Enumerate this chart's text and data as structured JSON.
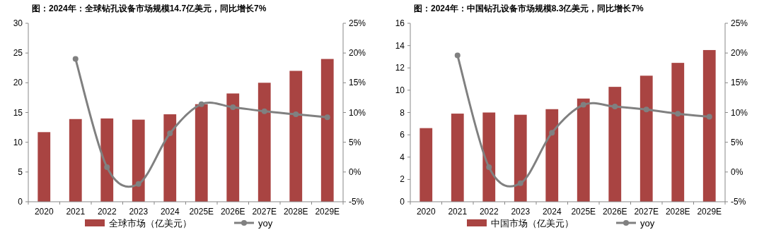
{
  "chart_data": [
    {
      "type": "bar",
      "title": "图：2024年：全球钻孔设备市场规模14.7亿美元，同比增长7%",
      "categories": [
        "2020",
        "2021",
        "2022",
        "2023",
        "2024",
        "2025E",
        "2026E",
        "2027E",
        "2028E",
        "2029E"
      ],
      "series": [
        {
          "name": "全球市场（亿美元）",
          "color": "#a94442",
          "values": [
            11.7,
            13.9,
            14.0,
            13.8,
            14.7,
            16.4,
            18.2,
            20.0,
            22.0,
            24.0
          ]
        },
        {
          "name": "yoy",
          "type": "line",
          "axis": "y2",
          "color": "#808080",
          "marker": "circle",
          "line_style": "solid",
          "values": [
            null,
            19.0,
            0.8,
            -2.0,
            6.5,
            11.4,
            10.9,
            10.2,
            9.7,
            9.2
          ]
        }
      ],
      "ylim": [
        0,
        30
      ],
      "yticks": [
        0,
        5,
        10,
        15,
        20,
        25,
        30
      ],
      "y2lim": [
        -5,
        25
      ],
      "y2ticks": [
        {
          "value": -5,
          "label": "-5%"
        },
        {
          "value": 0,
          "label": "0%"
        },
        {
          "value": 5,
          "label": "5%"
        },
        {
          "value": 10,
          "label": "10%"
        },
        {
          "value": 15,
          "label": "15%"
        },
        {
          "value": 20,
          "label": "20%"
        },
        {
          "value": 25,
          "label": "25%"
        }
      ],
      "legend": "bottom"
    },
    {
      "type": "bar",
      "title": "图：2024年：中国钻孔设备市场规模8.3亿美元，同比增长7%",
      "categories": [
        "2020",
        "2021",
        "2022",
        "2023",
        "2024",
        "2025E",
        "2026E",
        "2027E",
        "2028E",
        "2029E"
      ],
      "series": [
        {
          "name": "中国市场（亿美元）",
          "color": "#a94442",
          "values": [
            6.6,
            7.9,
            8.0,
            7.8,
            8.3,
            9.25,
            10.3,
            11.3,
            12.45,
            13.6
          ]
        },
        {
          "name": "yoy",
          "type": "line",
          "axis": "y2",
          "color": "#808080",
          "marker": "circle",
          "line_style": "solid",
          "values": [
            null,
            19.6,
            0.8,
            -1.9,
            6.6,
            11.3,
            11.0,
            10.5,
            9.8,
            9.3
          ]
        }
      ],
      "ylim": [
        0,
        16
      ],
      "yticks": [
        0,
        2,
        4,
        6,
        8,
        10,
        12,
        14,
        16
      ],
      "y2lim": [
        -5,
        25
      ],
      "y2ticks": [
        {
          "value": -5,
          "label": "-5%"
        },
        {
          "value": 0,
          "label": "0%"
        },
        {
          "value": 5,
          "label": "5%"
        },
        {
          "value": 10,
          "label": "10%"
        },
        {
          "value": 15,
          "label": "15%"
        },
        {
          "value": 20,
          "label": "20%"
        },
        {
          "value": 25,
          "label": "25%"
        }
      ],
      "legend": "bottom"
    }
  ]
}
